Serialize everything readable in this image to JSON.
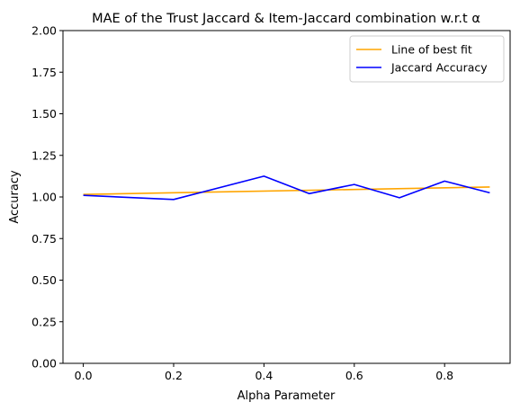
{
  "chart_data": {
    "type": "line",
    "title": "MAE of the Trust Jaccard & Item-Jaccard combination w.r.t α",
    "xlabel": "Alpha Parameter",
    "ylabel": "Accuracy",
    "xlim": [
      -0.045,
      0.945
    ],
    "ylim": [
      0,
      2.0
    ],
    "xticks": [
      0.0,
      0.2,
      0.4,
      0.6,
      0.8
    ],
    "xtick_labels": [
      "0.0",
      "0.2",
      "0.4",
      "0.6",
      "0.8"
    ],
    "yticks": [
      0.0,
      0.25,
      0.5,
      0.75,
      1.0,
      1.25,
      1.5,
      1.75,
      2.0
    ],
    "ytick_labels": [
      "0.00",
      "0.25",
      "0.50",
      "0.75",
      "1.00",
      "1.25",
      "1.50",
      "1.75",
      "2.00"
    ],
    "grid": false,
    "legend_position": "top-right",
    "series": [
      {
        "name": "Line of best fit",
        "color": "#ffa500",
        "x": [
          0.0,
          0.9
        ],
        "y": [
          1.015,
          1.06
        ]
      },
      {
        "name": "Jaccard Accuracy",
        "color": "#0000ff",
        "x": [
          0.0,
          0.2,
          0.4,
          0.5,
          0.6,
          0.7,
          0.8,
          0.9
        ],
        "y": [
          1.01,
          0.985,
          1.125,
          1.02,
          1.075,
          0.995,
          1.095,
          1.025
        ]
      }
    ]
  }
}
